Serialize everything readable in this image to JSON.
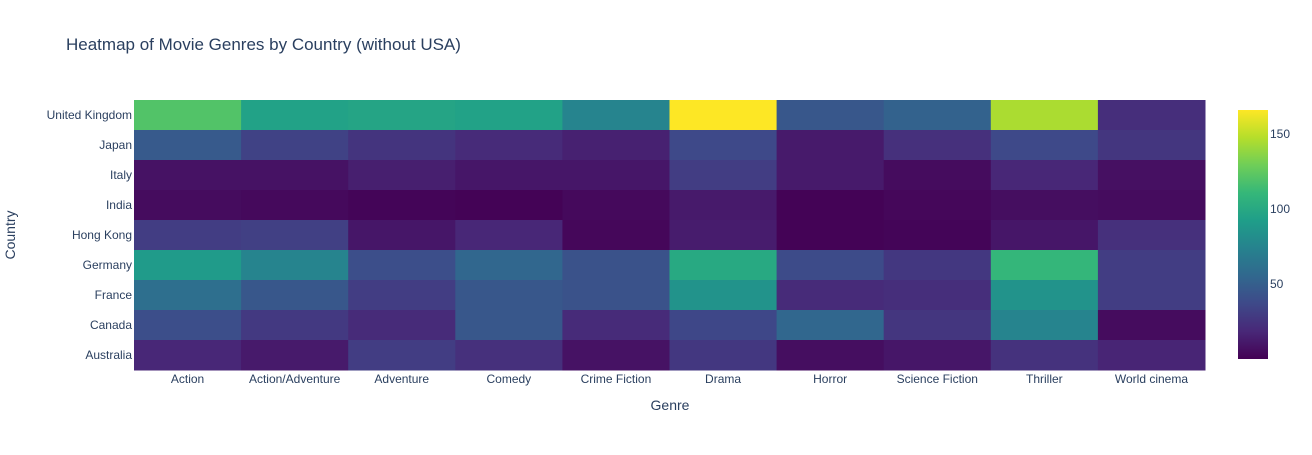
{
  "chart_data": {
    "type": "heatmap",
    "title": "Heatmap of Movie Genres by Country (without USA)",
    "xlabel": "Genre",
    "ylabel": "Country",
    "x": [
      "Action",
      "Action/Adventure",
      "Adventure",
      "Comedy",
      "Crime Fiction",
      "Drama",
      "Horror",
      "Science Fiction",
      "Thriller",
      "World cinema"
    ],
    "y": [
      "United Kingdom",
      "Japan",
      "Italy",
      "India",
      "Hong Kong",
      "Germany",
      "France",
      "Canada",
      "Australia"
    ],
    "z": [
      [
        120,
        95,
        97,
        95,
        75,
        166,
        45,
        52,
        145,
        22
      ],
      [
        47,
        33,
        25,
        20,
        15,
        37,
        12,
        23,
        37,
        26
      ],
      [
        8,
        8,
        14,
        10,
        10,
        30,
        12,
        5,
        18,
        7
      ],
      [
        5,
        4,
        2,
        1,
        4,
        12,
        1,
        3,
        6,
        5
      ],
      [
        30,
        32,
        10,
        18,
        3,
        13,
        1,
        2,
        10,
        23
      ],
      [
        90,
        75,
        40,
        55,
        42,
        100,
        38,
        27,
        110,
        30
      ],
      [
        60,
        45,
        30,
        45,
        42,
        85,
        20,
        22,
        85,
        30
      ],
      [
        40,
        28,
        20,
        45,
        20,
        36,
        55,
        26,
        75,
        5
      ],
      [
        18,
        12,
        30,
        23,
        8,
        27,
        6,
        10,
        24,
        17
      ]
    ],
    "zmin": 0,
    "zmax": 166,
    "colorscale": "Viridis",
    "colorbar_ticks": [
      50,
      100,
      150
    ]
  }
}
